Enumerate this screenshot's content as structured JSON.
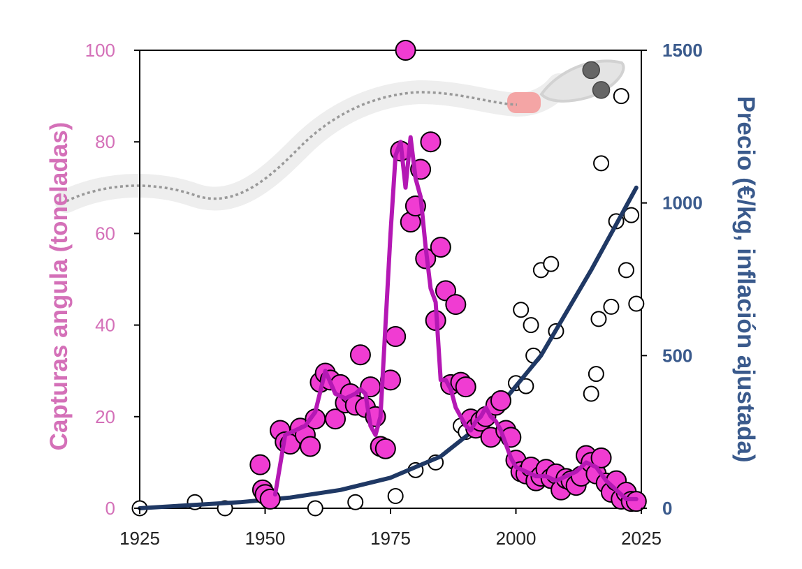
{
  "chart_data": {
    "type": "scatter",
    "title": "",
    "xlabel": "",
    "ylabel": "Capturas angula (toneladas)",
    "y2label": "Precio (€/kg, inflación ajustada)",
    "xlim": [
      1925,
      2025
    ],
    "ylim": [
      0,
      100
    ],
    "y2lim": [
      0,
      1500
    ],
    "xticks": [
      "1925",
      "1950",
      "1975",
      "2000",
      "2025"
    ],
    "yticks": [
      "0",
      "20",
      "40",
      "60",
      "80",
      "100"
    ],
    "y2ticks": [
      "0",
      "500",
      "1000",
      "1500"
    ],
    "grid": false,
    "colors": {
      "catch": "#f03cd2",
      "catch_line": "#b418b4",
      "price_line": "#1f3864",
      "left_axis": "#d470b8",
      "right_axis": "#3a5a8c",
      "eel_body": "#eeeeee",
      "eel_gill": "#f4a5a5",
      "highlight_points": "#666666"
    },
    "series": [
      {
        "role": "catch_points",
        "axis": "left",
        "x": [
          1949,
          1949.5,
          1950,
          1951,
          1953,
          1954,
          1955,
          1957,
          1958,
          1959,
          1960,
          1961,
          1962,
          1963,
          1964,
          1965,
          1966,
          1967,
          1968,
          1969,
          1970,
          1971,
          1972,
          1973,
          1974,
          1975,
          1976,
          1977,
          1978,
          1979,
          1980,
          1981,
          1982,
          1983,
          1984,
          1985,
          1986,
          1987,
          1988,
          1989,
          1990,
          1991,
          1992,
          1993,
          1994,
          1995,
          1996,
          1997,
          1998,
          1999,
          2000,
          2001,
          2002,
          2003,
          2004,
          2005,
          2006,
          2007,
          2008,
          2009,
          2010,
          2011,
          2012,
          2013,
          2014,
          2015,
          2016,
          2017,
          2018,
          2019,
          2020,
          2021,
          2022,
          2023,
          2024
        ],
        "y": [
          9.5,
          4,
          3,
          2,
          17,
          14.5,
          14,
          17.5,
          16,
          13.5,
          19.5,
          27.5,
          29.5,
          28,
          19.5,
          27,
          23,
          25,
          22.5,
          33.5,
          22,
          26.5,
          20,
          13.5,
          13,
          28,
          37.5,
          78,
          100,
          62.5,
          66,
          74,
          54.5,
          80,
          41,
          57,
          47.5,
          27,
          44.5,
          27.5,
          26.5,
          19.5,
          17.5,
          19,
          20,
          15.5,
          22.5,
          23.5,
          17,
          15.5,
          10.5,
          8,
          7.5,
          9,
          6,
          7,
          8.5,
          6.5,
          7.5,
          4,
          6.5,
          6,
          5,
          7,
          11.5,
          10,
          7.5,
          11,
          5.5,
          3.5,
          6,
          2,
          3.5,
          1.5,
          1.5
        ]
      },
      {
        "role": "catch_line",
        "axis": "left",
        "x": [
          1952,
          1954,
          1956,
          1958,
          1960,
          1962,
          1964,
          1966,
          1968,
          1969,
          1970,
          1971,
          1972,
          1973,
          1974,
          1975,
          1976,
          1977,
          1978,
          1979,
          1980,
          1981,
          1982,
          1983,
          1984,
          1985,
          1986,
          1987,
          1988,
          1989,
          1990,
          1991,
          1992,
          1993,
          1994,
          1995,
          1996,
          1997,
          1998,
          1999,
          2000,
          2002,
          2004,
          2006,
          2008,
          2010,
          2012,
          2014,
          2016,
          2018,
          2020,
          2022,
          2024
        ],
        "y": [
          3,
          16,
          17,
          18,
          21,
          30,
          25,
          24,
          25,
          26,
          25,
          18,
          16,
          20,
          40,
          60,
          77,
          80,
          70,
          81,
          72,
          68,
          57,
          48,
          45,
          28,
          28,
          26,
          22,
          20,
          18,
          17,
          19,
          20,
          22,
          20,
          19,
          17,
          14,
          11,
          9,
          8,
          7,
          7,
          6,
          7,
          8,
          10,
          9,
          6,
          4,
          2,
          2
        ]
      },
      {
        "role": "price_points",
        "axis": "right",
        "x": [
          1925,
          1936,
          1942,
          1950,
          1960,
          1968,
          1976,
          1980,
          1984,
          1989,
          1990,
          2000,
          2001,
          2002,
          2003,
          2003.5,
          2004,
          2005,
          2007,
          2008,
          2015,
          2016,
          2016.5,
          2017,
          2019,
          2020,
          2021,
          2022,
          2023,
          2024
        ],
        "y": [
          0,
          20,
          0,
          60,
          0,
          20,
          40,
          125,
          150,
          270,
          250,
          410,
          650,
          400,
          600,
          500,
          100,
          780,
          800,
          580,
          375,
          440,
          620,
          1130,
          660,
          940,
          1350,
          780,
          960,
          670
        ]
      },
      {
        "role": "price_highlight",
        "axis": "right",
        "x": [
          2015,
          2017
        ],
        "y": [
          1435,
          1370
        ]
      },
      {
        "role": "price_trend",
        "axis": "right",
        "x": [
          1925,
          1935,
          1945,
          1955,
          1965,
          1975,
          1985,
          1995,
          2005,
          2015,
          2024
        ],
        "y": [
          0,
          10,
          20,
          35,
          60,
          100,
          170,
          300,
          500,
          780,
          1050
        ]
      }
    ]
  }
}
